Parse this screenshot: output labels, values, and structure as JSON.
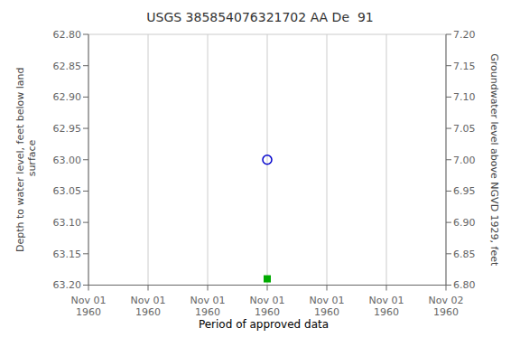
{
  "chart_data": {
    "type": "scatter",
    "title": "USGS 385854076321702 AA De  91",
    "y_label": "Depth to water level, feet below land\n surface",
    "y2_label": "Groundwater level above NGVD 1929, feet",
    "categories": [
      "Nov 01\n1960",
      "Nov 01\n1960",
      "Nov 01\n1960",
      "Nov 01\n1960",
      "Nov 01\n1960",
      "Nov 01\n1960",
      "Nov 02\n1960"
    ],
    "series": [
      {
        "color": "#0000cc",
        "marker": "circle",
        "values": [
          null,
          null,
          null,
          63.0,
          null,
          null,
          null
        ]
      },
      {
        "name": "Period of approved data",
        "color": "#00aa00",
        "marker": "square",
        "values": [
          null,
          null,
          null,
          63.19,
          null,
          null,
          null
        ]
      }
    ],
    "ylim": [
      63.2,
      62.8
    ],
    "yticks": [
      {
        "value": 62.8,
        "label": "62.80"
      },
      {
        "value": 62.85,
        "label": "62.85"
      },
      {
        "value": 62.9,
        "label": "62.90"
      },
      {
        "value": 62.95,
        "label": "62.95"
      },
      {
        "value": 63.0,
        "label": "63.00"
      },
      {
        "value": 63.05,
        "label": "63.05"
      },
      {
        "value": 63.1,
        "label": "63.10"
      },
      {
        "value": 63.15,
        "label": "63.15"
      },
      {
        "value": 63.2,
        "label": "63.20"
      }
    ],
    "y2lim": [
      6.8,
      7.2
    ],
    "y2ticks": [
      {
        "value": 7.2,
        "label": "7.20"
      },
      {
        "value": 7.15,
        "label": "7.15"
      },
      {
        "value": 7.1,
        "label": "7.10"
      },
      {
        "value": 7.05,
        "label": "7.05"
      },
      {
        "value": 7.0,
        "label": "7.00"
      },
      {
        "value": 6.95,
        "label": "6.95"
      },
      {
        "value": 6.9,
        "label": "6.90"
      },
      {
        "value": 6.85,
        "label": "6.85"
      },
      {
        "value": 6.8,
        "label": "6.80"
      }
    ],
    "grid": true,
    "legend": "bottom"
  }
}
